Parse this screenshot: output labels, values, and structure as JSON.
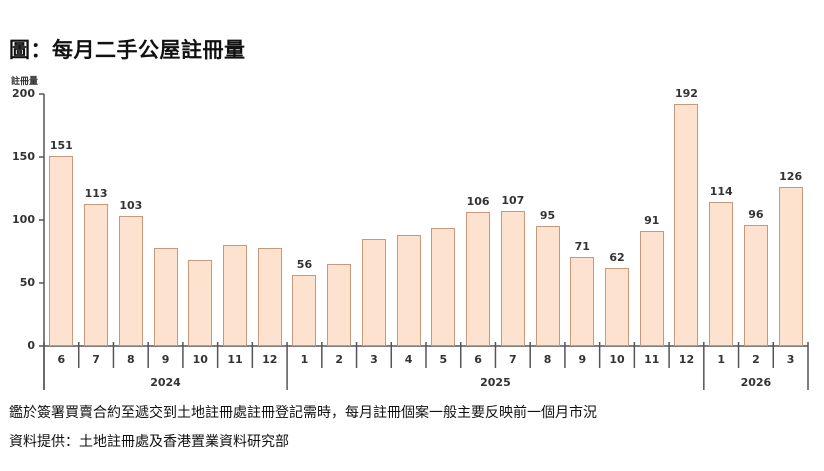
{
  "title": "圖：每月二手公屋註冊量",
  "footer": {
    "note": "鑑於簽署買賣合約至遞交到土地註冊處註冊登記需時，每月註冊個案一般主要反映前一個月市況",
    "source": "資料提供：土地註冊處及香港置業資料研究部"
  },
  "colors": {
    "bar_fill": "#fde3cf",
    "bar_border": "#c9977a",
    "axis": "#555555"
  },
  "chart_data": {
    "type": "bar",
    "title": "圖：每月二手公屋註冊量",
    "xlabel": "",
    "ylabel": "註冊量",
    "ylim": [
      0,
      200
    ],
    "yticks": [
      0,
      50,
      100,
      150,
      200
    ],
    "grid": false,
    "legend": null,
    "categories": [
      "6",
      "7",
      "8",
      "9",
      "10",
      "11",
      "12",
      "1",
      "2",
      "3",
      "4",
      "5",
      "6",
      "7",
      "8",
      "9",
      "10",
      "11",
      "12",
      "1",
      "2",
      "3"
    ],
    "years": [
      {
        "label": "2024",
        "start": 0,
        "end": 7
      },
      {
        "label": "2025",
        "start": 7,
        "end": 19
      },
      {
        "label": "2026",
        "start": 19,
        "end": 22
      }
    ],
    "values": [
      151,
      113,
      103,
      78,
      68,
      80,
      78,
      56,
      65,
      85,
      88,
      94,
      106,
      107,
      95,
      71,
      62,
      91,
      192,
      114,
      96,
      126
    ],
    "labels": [
      "151",
      "113",
      "103",
      "",
      "",
      "",
      "",
      "56",
      "",
      "",
      "",
      "",
      "106",
      "107",
      "95",
      "71",
      "62",
      "91",
      "192",
      "114",
      "96",
      "126"
    ]
  }
}
